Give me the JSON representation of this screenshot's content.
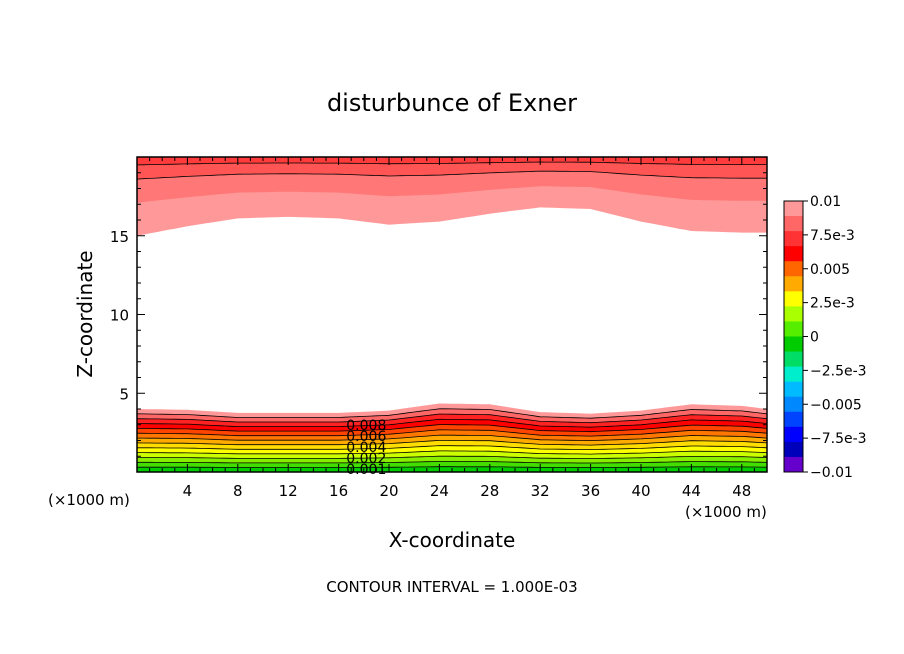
{
  "chart_data": {
    "type": "contour",
    "title": "disturbunce of Exner",
    "xlabel": "X-coordinate",
    "ylabel": "Z-coordinate",
    "x_unit_left": "(×1000 m)",
    "x_unit_right": "(×1000 m)",
    "xlim": [
      0,
      50
    ],
    "ylim": [
      0,
      20
    ],
    "x_ticks": [
      "4",
      "8",
      "12",
      "16",
      "20",
      "24",
      "28",
      "32",
      "36",
      "40",
      "44",
      "48"
    ],
    "y_ticks": [
      "5",
      "10",
      "15"
    ],
    "footer": "CONTOUR INTERVAL = 1.000E-03",
    "contour_interval": 0.001,
    "contour_labels": [
      "0.008",
      "0.006",
      "0.004",
      "0.002",
      "0.001"
    ],
    "colorbar": {
      "range": [
        -0.01,
        0.01
      ],
      "tick_labels": [
        "0.01",
        "7.5e-3",
        "0.005",
        "2.5e-3",
        "0",
        "−2.5e-3",
        "−0.005",
        "−7.5e-3",
        "−0.01"
      ],
      "colors": [
        "#ff9999",
        "#ff6666",
        "#ff3333",
        "#ff0000",
        "#ff6600",
        "#ffaa00",
        "#ffff00",
        "#aaff00",
        "#55ee00",
        "#00cc00",
        "#00dd66",
        "#00eecc",
        "#00bbff",
        "#0088ff",
        "#0044ff",
        "#0000ff",
        "#0000bb",
        "#6600cc"
      ]
    },
    "bottom_layer_z": [
      4.0,
      3.95,
      3.75,
      3.75,
      3.75,
      3.9,
      4.35,
      4.3,
      3.8,
      3.7,
      3.9,
      4.3,
      4.2,
      4.0
    ],
    "top_layer_z": [
      15.0,
      15.6,
      16.1,
      16.2,
      16.1,
      15.7,
      15.9,
      16.4,
      16.8,
      16.7,
      15.9,
      15.3,
      15.2,
      15.2
    ],
    "profile_x": [
      0,
      4,
      8,
      12,
      16,
      20,
      24,
      28,
      32,
      36,
      40,
      44,
      48,
      50
    ]
  }
}
